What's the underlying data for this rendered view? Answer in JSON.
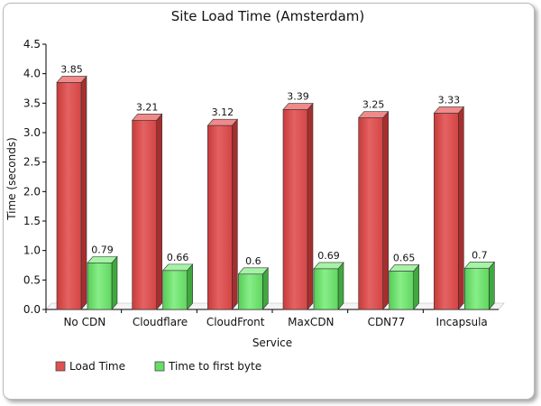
{
  "chart_data": {
    "type": "bar",
    "title": "Site Load Time (Amsterdam)",
    "xlabel": "Service",
    "ylabel": "Time (seconds)",
    "ylim": [
      0,
      4.5
    ],
    "yticks": [
      "0.0",
      "0.5",
      "1.0",
      "1.5",
      "2.0",
      "2.5",
      "3.0",
      "3.5",
      "4.0",
      "4.5"
    ],
    "grid": false,
    "legend_position": "bottom-left",
    "categories": [
      "No CDN",
      "Cloudflare",
      "CloudFront",
      "MaxCDN",
      "CDN77",
      "Incapsula"
    ],
    "series": [
      {
        "name": "Load Time",
        "values": [
          3.85,
          3.21,
          3.12,
          3.39,
          3.25,
          3.33
        ],
        "labels": [
          "3.85",
          "3.21",
          "3.12",
          "3.39",
          "3.25",
          "3.33"
        ],
        "color": "#e05050"
      },
      {
        "name": "Time to first byte",
        "values": [
          0.79,
          0.66,
          0.6,
          0.69,
          0.65,
          0.7
        ],
        "labels": [
          "0.79",
          "0.66",
          "0.6",
          "0.69",
          "0.65",
          "0.7"
        ],
        "color": "#66dd66"
      }
    ]
  }
}
